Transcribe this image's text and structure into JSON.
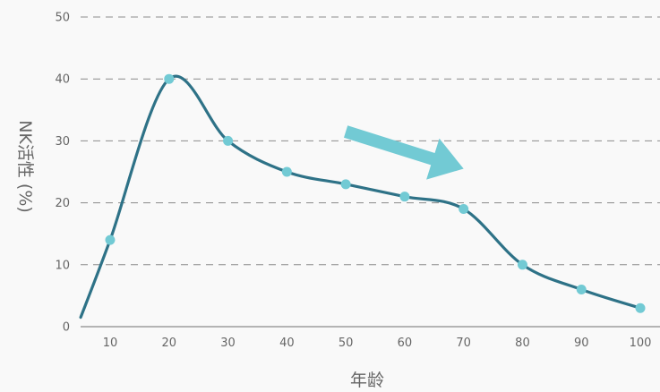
{
  "chart_data": {
    "type": "line",
    "title": "",
    "xlabel": "年龄",
    "ylabel": "NK活性 (%)",
    "x": [
      10,
      20,
      30,
      40,
      50,
      60,
      70,
      80,
      90,
      100
    ],
    "series": [
      {
        "values": [
          14,
          40,
          30,
          25,
          23,
          21,
          19,
          10,
          6,
          3
        ],
        "line_color": "#2e7287",
        "marker_color": "#72cad4"
      }
    ],
    "curve_start": {
      "x": 5,
      "y": 1.5
    },
    "xticks": [
      "10",
      "20",
      "30",
      "40",
      "50",
      "60",
      "70",
      "80",
      "90",
      "100"
    ],
    "yticks": [
      "0",
      "10",
      "20",
      "30",
      "40",
      "50"
    ],
    "xlim": [
      5,
      103
    ],
    "ylim": [
      0,
      50
    ],
    "grid": true,
    "annotations": [
      {
        "type": "arrow",
        "color": "#72cad4",
        "from": {
          "x": 50,
          "y": 31.5
        },
        "to": {
          "x": 70,
          "y": 25.5
        }
      }
    ]
  }
}
